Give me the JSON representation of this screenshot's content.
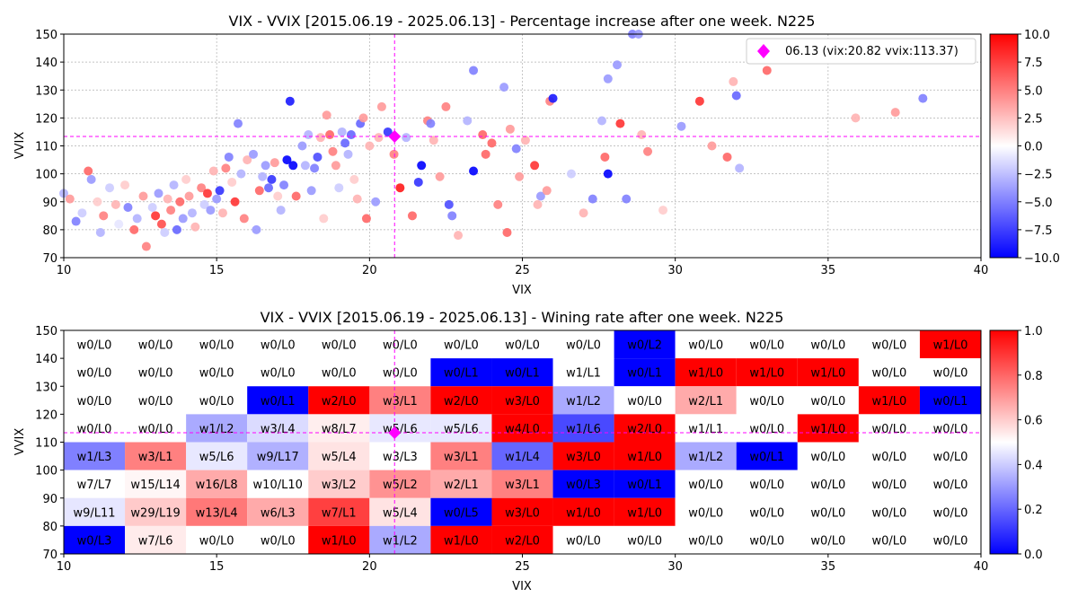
{
  "chart_data": [
    {
      "type": "scatter",
      "title": "VIX - VVIX [2015.06.19 - 2025.06.13]  - Percentage increase after one week. N225",
      "xlabel": "VIX",
      "ylabel": "VVIX",
      "xlim": [
        10,
        40
      ],
      "ylim": [
        70,
        150
      ],
      "x_ticks": [
        10,
        15,
        20,
        25,
        30,
        35,
        40
      ],
      "y_ticks": [
        70,
        80,
        90,
        100,
        110,
        120,
        130,
        140,
        150
      ],
      "grid": true,
      "colormap": "bwr",
      "color_range": [
        -10,
        10
      ],
      "colorbar_ticks": [
        "10.0",
        "7.5",
        "5.0",
        "2.5",
        "0.0",
        "−2.5",
        "−5.0",
        "−7.5",
        "−10.0"
      ],
      "current_point": {
        "vix": 20.82,
        "vvix": 113.37,
        "label": "06.13 (vix:20.82 vvix:113.37)",
        "color": "#ff00ff"
      },
      "legend_position": "top-right",
      "points": [
        [
          10.0,
          93,
          -3
        ],
        [
          10.2,
          91,
          4
        ],
        [
          10.4,
          83,
          -5
        ],
        [
          10.6,
          86,
          -2
        ],
        [
          10.8,
          101,
          6
        ],
        [
          10.9,
          98,
          -4
        ],
        [
          11.1,
          90,
          2
        ],
        [
          11.2,
          79,
          -3
        ],
        [
          11.3,
          85,
          5
        ],
        [
          11.5,
          95,
          -2
        ],
        [
          11.7,
          89,
          3
        ],
        [
          11.8,
          82,
          -1
        ],
        [
          12.0,
          96,
          2
        ],
        [
          12.1,
          88,
          -5
        ],
        [
          12.3,
          80,
          6
        ],
        [
          12.4,
          84,
          -3
        ],
        [
          12.6,
          92,
          4
        ],
        [
          12.7,
          74,
          5
        ],
        [
          12.9,
          88,
          -2
        ],
        [
          13.0,
          85,
          8
        ],
        [
          13.1,
          93,
          -4
        ],
        [
          13.2,
          82,
          7
        ],
        [
          13.3,
          79,
          -2
        ],
        [
          13.4,
          91,
          3
        ],
        [
          13.5,
          87,
          5
        ],
        [
          13.6,
          96,
          -3
        ],
        [
          13.7,
          80,
          -6
        ],
        [
          13.8,
          90,
          6
        ],
        [
          13.9,
          84,
          -4
        ],
        [
          14.0,
          98,
          2
        ],
        [
          14.1,
          92,
          4
        ],
        [
          14.2,
          86,
          -3
        ],
        [
          14.3,
          81,
          3
        ],
        [
          14.5,
          95,
          5
        ],
        [
          14.6,
          89,
          -2
        ],
        [
          14.7,
          93,
          8
        ],
        [
          14.8,
          87,
          -4
        ],
        [
          14.9,
          101,
          3
        ],
        [
          15.0,
          91,
          -4
        ],
        [
          15.1,
          94,
          -8
        ],
        [
          15.2,
          86,
          3
        ],
        [
          15.3,
          102,
          5
        ],
        [
          15.4,
          106,
          -5
        ],
        [
          15.5,
          97,
          2
        ],
        [
          15.6,
          90,
          8
        ],
        [
          15.7,
          118,
          -5
        ],
        [
          15.8,
          100,
          -3
        ],
        [
          15.9,
          84,
          5
        ],
        [
          16.0,
          105,
          3
        ],
        [
          16.2,
          107,
          -4
        ],
        [
          16.3,
          80,
          -4
        ],
        [
          16.4,
          94,
          6
        ],
        [
          16.5,
          99,
          -3
        ],
        [
          16.6,
          103,
          -4
        ],
        [
          16.7,
          95,
          -6
        ],
        [
          16.8,
          98,
          -8
        ],
        [
          16.9,
          104,
          4
        ],
        [
          17.0,
          92,
          2
        ],
        [
          17.1,
          87,
          -3
        ],
        [
          17.2,
          96,
          -5
        ],
        [
          17.3,
          105,
          -10
        ],
        [
          17.4,
          126,
          -9
        ],
        [
          17.5,
          103,
          -10
        ],
        [
          17.6,
          92,
          6
        ],
        [
          17.8,
          110,
          -4
        ],
        [
          17.9,
          103,
          -3
        ],
        [
          18.0,
          114,
          -3
        ],
        [
          18.1,
          94,
          -4
        ],
        [
          18.2,
          102,
          -5
        ],
        [
          18.3,
          106,
          -7
        ],
        [
          18.4,
          113,
          3
        ],
        [
          18.5,
          84,
          2
        ],
        [
          18.6,
          121,
          4
        ],
        [
          18.7,
          114,
          6
        ],
        [
          18.8,
          108,
          5
        ],
        [
          18.9,
          103,
          4
        ],
        [
          19.0,
          95,
          -2
        ],
        [
          19.1,
          115,
          -3
        ],
        [
          19.2,
          111,
          -6
        ],
        [
          19.3,
          107,
          -3
        ],
        [
          19.4,
          114,
          -6
        ],
        [
          19.5,
          98,
          2
        ],
        [
          19.6,
          91,
          3
        ],
        [
          19.7,
          118,
          -6
        ],
        [
          19.8,
          120,
          4
        ],
        [
          19.9,
          84,
          6
        ],
        [
          20.0,
          110,
          3
        ],
        [
          20.2,
          90,
          -4
        ],
        [
          20.3,
          113,
          3
        ],
        [
          20.4,
          124,
          4
        ],
        [
          20.6,
          115,
          -8
        ],
        [
          20.8,
          107,
          5
        ],
        [
          21.0,
          95,
          9
        ],
        [
          21.2,
          113,
          -3
        ],
        [
          21.4,
          85,
          6
        ],
        [
          21.6,
          97,
          -8
        ],
        [
          21.7,
          103,
          -10
        ],
        [
          21.9,
          119,
          5
        ],
        [
          22.0,
          118,
          -5
        ],
        [
          22.1,
          112,
          3
        ],
        [
          22.3,
          99,
          4
        ],
        [
          22.5,
          124,
          5
        ],
        [
          22.6,
          89,
          -7
        ],
        [
          22.7,
          85,
          -5
        ],
        [
          22.9,
          78,
          3
        ],
        [
          23.2,
          119,
          -3
        ],
        [
          23.4,
          137,
          -5
        ],
        [
          23.4,
          101,
          -10
        ],
        [
          23.7,
          114,
          6
        ],
        [
          23.8,
          107,
          6
        ],
        [
          24.0,
          111,
          6
        ],
        [
          24.2,
          89,
          5
        ],
        [
          24.4,
          131,
          -4
        ],
        [
          24.5,
          79,
          6
        ],
        [
          24.6,
          116,
          4
        ],
        [
          24.8,
          109,
          -5
        ],
        [
          24.9,
          99,
          4
        ],
        [
          25.1,
          112,
          3
        ],
        [
          25.4,
          103,
          8
        ],
        [
          25.5,
          89,
          3
        ],
        [
          25.6,
          92,
          -4
        ],
        [
          25.8,
          94,
          4
        ],
        [
          25.9,
          126,
          5
        ],
        [
          26.0,
          127,
          -9
        ],
        [
          26.6,
          100,
          -2
        ],
        [
          27.0,
          86,
          3
        ],
        [
          27.3,
          91,
          -5
        ],
        [
          27.6,
          119,
          -3
        ],
        [
          27.7,
          106,
          6
        ],
        [
          27.8,
          134,
          -4
        ],
        [
          27.8,
          100,
          -10
        ],
        [
          28.1,
          139,
          -4
        ],
        [
          28.2,
          118,
          8
        ],
        [
          28.4,
          91,
          -5
        ],
        [
          28.6,
          150,
          -5
        ],
        [
          28.8,
          150,
          -4
        ],
        [
          28.9,
          114,
          3
        ],
        [
          29.1,
          108,
          5
        ],
        [
          29.6,
          87,
          2
        ],
        [
          30.2,
          117,
          -4
        ],
        [
          30.8,
          126,
          8
        ],
        [
          31.2,
          110,
          4
        ],
        [
          31.7,
          106,
          6
        ],
        [
          31.9,
          133,
          3
        ],
        [
          32.0,
          128,
          -6
        ],
        [
          32.1,
          102,
          -3
        ],
        [
          33.0,
          137,
          6
        ],
        [
          35.9,
          120,
          3
        ],
        [
          37.2,
          122,
          4
        ],
        [
          38.1,
          127,
          -5
        ],
        [
          38.0,
          145,
          6
        ]
      ]
    },
    {
      "type": "heatmap",
      "title": "VIX - VVIX [2015.06.19 - 2025.06.13]  - Wining rate after one week. N225",
      "xlabel": "VIX",
      "ylabel": "VVIX",
      "xlim": [
        10,
        40
      ],
      "ylim": [
        70,
        150
      ],
      "x_ticks": [
        10,
        15,
        20,
        25,
        30,
        35,
        40
      ],
      "y_ticks": [
        70,
        80,
        90,
        100,
        110,
        120,
        130,
        140,
        150
      ],
      "colormap": "bwr",
      "color_range": [
        0,
        1
      ],
      "colorbar_ticks": [
        "1.0",
        "0.8",
        "0.6",
        "0.4",
        "0.2",
        "0.0"
      ],
      "x_bins": [
        10,
        12,
        14,
        16,
        18,
        20,
        22,
        24,
        26,
        28,
        30,
        32,
        34,
        36,
        38,
        40
      ],
      "y_bins": [
        70,
        80,
        90,
        100,
        110,
        120,
        130,
        140,
        150
      ],
      "current_point": {
        "vix": 20.82,
        "vvix": 113.37,
        "color": "#ff00ff"
      },
      "rows": [
        {
          "vvix_range": [
            140,
            150
          ],
          "cells": [
            "w0/L0",
            "w0/L0",
            "w0/L0",
            "w0/L0",
            "w0/L0",
            "w0/L0",
            "w0/L0",
            "w0/L0",
            "w0/L0",
            "w0/L2",
            "w0/L0",
            "w0/L0",
            "w0/L0",
            "w0/L0",
            "w1/L0"
          ]
        },
        {
          "vvix_range": [
            130,
            140
          ],
          "cells": [
            "w0/L0",
            "w0/L0",
            "w0/L0",
            "w0/L0",
            "w0/L0",
            "w0/L0",
            "w0/L1",
            "w0/L1",
            "w1/L1",
            "w0/L1",
            "w1/L0",
            "w1/L0",
            "w1/L0",
            "w0/L0",
            "w0/L0"
          ]
        },
        {
          "vvix_range": [
            120,
            130
          ],
          "cells": [
            "w0/L0",
            "w0/L0",
            "w0/L0",
            "w0/L1",
            "w2/L0",
            "w3/L1",
            "w2/L0",
            "w3/L0",
            "w1/L2",
            "w0/L0",
            "w2/L1",
            "w0/L0",
            "w0/L0",
            "w1/L0",
            "w0/L1"
          ]
        },
        {
          "vvix_range": [
            110,
            120
          ],
          "cells": [
            "w0/L0",
            "w0/L0",
            "w1/L2",
            "w3/L4",
            "w8/L7",
            "w5/L6",
            "w5/L6",
            "w4/L0",
            "w1/L6",
            "w2/L0",
            "w1/L1",
            "w0/L0",
            "w1/L0",
            "w0/L0",
            "w0/L0"
          ]
        },
        {
          "vvix_range": [
            100,
            110
          ],
          "cells": [
            "w1/L3",
            "w3/L1",
            "w5/L6",
            "w9/L17",
            "w5/L4",
            "w3/L3",
            "w3/L1",
            "w1/L4",
            "w3/L0",
            "w1/L0",
            "w1/L2",
            "w0/L1",
            "w0/L0",
            "w0/L0",
            "w0/L0"
          ]
        },
        {
          "vvix_range": [
            90,
            100
          ],
          "cells": [
            "w7/L7",
            "w15/L14",
            "w16/L8",
            "w10/L10",
            "w3/L2",
            "w5/L2",
            "w2/L1",
            "w3/L1",
            "w0/L3",
            "w0/L1",
            "w0/L0",
            "w0/L0",
            "w0/L0",
            "w0/L0",
            "w0/L0"
          ]
        },
        {
          "vvix_range": [
            80,
            90
          ],
          "cells": [
            "w9/L11",
            "w29/L19",
            "w13/L4",
            "w6/L3",
            "w7/L1",
            "w5/L4",
            "w0/L5",
            "w3/L0",
            "w1/L0",
            "w1/L0",
            "w0/L0",
            "w0/L0",
            "w0/L0",
            "w0/L0",
            "w0/L0"
          ]
        },
        {
          "vvix_range": [
            70,
            80
          ],
          "cells": [
            "w0/L3",
            "w7/L6",
            "w0/L0",
            "w0/L0",
            "w1/L0",
            "w1/L2",
            "w1/L0",
            "w2/L0",
            "w0/L0",
            "w0/L0",
            "w0/L0",
            "w0/L0",
            "w0/L0",
            "w0/L0",
            "w0/L0"
          ]
        }
      ]
    }
  ]
}
